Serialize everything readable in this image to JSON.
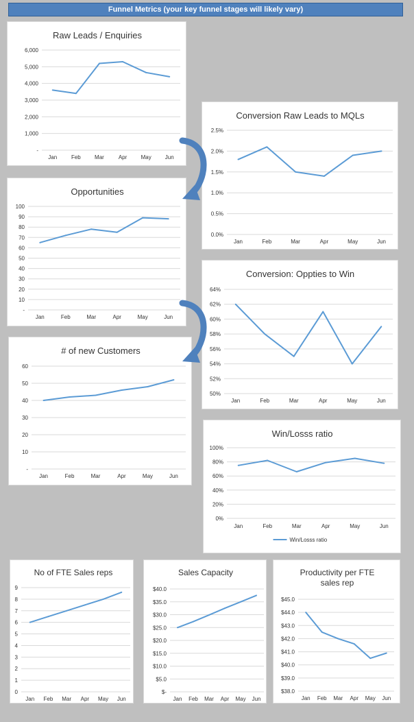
{
  "banner": {
    "title": "Funnel Metrics (your key funnel stages will likely vary)"
  },
  "colors": {
    "line": "#5b9bd5",
    "grid": "#d9d9d9",
    "banner": "#4f81bd",
    "arrow": "#4f81bd"
  },
  "chart_data": [
    {
      "id": "raw-leads",
      "type": "line",
      "title": [
        "Raw Leads / Enquiries"
      ],
      "categories": [
        "Jan",
        "Feb",
        "Mar",
        "Apr",
        "May",
        "Jun"
      ],
      "series": [
        {
          "values": [
            3600,
            3400,
            5200,
            5300,
            4650,
            4400
          ]
        }
      ],
      "ylim": [
        0,
        6000
      ],
      "yticks": [
        0,
        1000,
        2000,
        3000,
        4000,
        5000,
        6000
      ],
      "ytick_labels": [
        "-",
        "1,000",
        "2,000",
        "3,000",
        "4,000",
        "5,000",
        "6,000"
      ],
      "grid": true,
      "legend": null
    },
    {
      "id": "conv-leads-mql",
      "type": "line",
      "title": [
        "Conversion Raw Leads to MQLs"
      ],
      "categories": [
        "Jan",
        "Feb",
        "Mar",
        "Apr",
        "May",
        "Jun"
      ],
      "series": [
        {
          "values": [
            1.8,
            2.1,
            1.5,
            1.4,
            1.9,
            2.0
          ]
        }
      ],
      "ylim": [
        0,
        2.5
      ],
      "yticks": [
        0,
        0.5,
        1.0,
        1.5,
        2.0,
        2.5
      ],
      "ytick_labels": [
        "0.0%",
        "0.5%",
        "1.0%",
        "1.5%",
        "2.0%",
        "2.5%"
      ],
      "grid": true,
      "legend": null
    },
    {
      "id": "opportunities",
      "type": "line",
      "title": [
        "Opportunities"
      ],
      "categories": [
        "Jan",
        "Feb",
        "Mar",
        "Apr",
        "May",
        "Jun"
      ],
      "series": [
        {
          "values": [
            65,
            72,
            78,
            75,
            89,
            88
          ]
        }
      ],
      "ylim": [
        0,
        100
      ],
      "yticks": [
        0,
        10,
        20,
        30,
        40,
        50,
        60,
        70,
        80,
        90,
        100
      ],
      "ytick_labels": [
        "-",
        "10",
        "20",
        "30",
        "40",
        "50",
        "60",
        "70",
        "80",
        "90",
        "100"
      ],
      "grid": true,
      "legend": null
    },
    {
      "id": "conv-oppties-win",
      "type": "line",
      "title": [
        "Conversion: Oppties to Win"
      ],
      "categories": [
        "Jan",
        "Feb",
        "Mar",
        "Apr",
        "May",
        "Jun"
      ],
      "series": [
        {
          "values": [
            62,
            58,
            55,
            61,
            54,
            59
          ]
        }
      ],
      "ylim": [
        50,
        64
      ],
      "yticks": [
        50,
        52,
        54,
        56,
        58,
        60,
        62,
        64
      ],
      "ytick_labels": [
        "50%",
        "52%",
        "54%",
        "56%",
        "58%",
        "60%",
        "62%",
        "64%"
      ],
      "grid": true,
      "legend": null
    },
    {
      "id": "new-customers",
      "type": "line",
      "title": [
        "# of new Customers"
      ],
      "categories": [
        "Jan",
        "Feb",
        "Mar",
        "Apr",
        "May",
        "Jun"
      ],
      "series": [
        {
          "values": [
            40,
            42,
            43,
            46,
            48,
            52
          ]
        }
      ],
      "ylim": [
        0,
        60
      ],
      "yticks": [
        0,
        10,
        20,
        30,
        40,
        50,
        60
      ],
      "ytick_labels": [
        "-",
        "10",
        "20",
        "30",
        "40",
        "50",
        "60"
      ],
      "grid": true,
      "legend": null
    },
    {
      "id": "win-loss",
      "type": "line",
      "title": [
        "Win/Losss ratio"
      ],
      "categories": [
        "Jan",
        "Feb",
        "Mar",
        "Apr",
        "May",
        "Jun"
      ],
      "series": [
        {
          "name": "Win/Losss ratio",
          "values": [
            75,
            82,
            66,
            79,
            85,
            78
          ]
        }
      ],
      "ylim": [
        0,
        100
      ],
      "yticks": [
        0,
        20,
        40,
        60,
        80,
        100
      ],
      "ytick_labels": [
        "0%",
        "20%",
        "40%",
        "60%",
        "80%",
        "100%"
      ],
      "grid": true,
      "legend": "bottom"
    },
    {
      "id": "fte-reps",
      "type": "line",
      "title": [
        "No of FTE Sales reps"
      ],
      "categories": [
        "Jan",
        "Feb",
        "Mar",
        "Apr",
        "May",
        "Jun"
      ],
      "series": [
        {
          "values": [
            6.0,
            6.5,
            7.0,
            7.5,
            8.0,
            8.6
          ]
        }
      ],
      "ylim": [
        0,
        9
      ],
      "yticks": [
        0,
        1,
        2,
        3,
        4,
        5,
        6,
        7,
        8,
        9
      ],
      "ytick_labels": [
        "0",
        "1",
        "2",
        "3",
        "4",
        "5",
        "6",
        "7",
        "8",
        "9"
      ],
      "grid": true,
      "legend": null
    },
    {
      "id": "sales-capacity",
      "type": "line",
      "title": [
        "Sales Capacity"
      ],
      "categories": [
        "Jan",
        "Feb",
        "Mar",
        "Apr",
        "May",
        "Jun"
      ],
      "series": [
        {
          "values": [
            25.0,
            27.3,
            29.9,
            32.5,
            35.0,
            37.5
          ]
        }
      ],
      "ylim": [
        0,
        40
      ],
      "yticks": [
        0,
        5,
        10,
        15,
        20,
        25,
        30,
        35,
        40
      ],
      "ytick_labels": [
        "$-",
        "$5.0",
        "$10.0",
        "$15.0",
        "$20.0",
        "$25.0",
        "$30.0",
        "$35.0",
        "$40.0"
      ],
      "grid": true,
      "legend": null
    },
    {
      "id": "productivity",
      "type": "line",
      "title": [
        "Productivity per FTE",
        "sales rep"
      ],
      "categories": [
        "Jan",
        "Feb",
        "Mar",
        "Apr",
        "May",
        "Jun"
      ],
      "series": [
        {
          "values": [
            44.0,
            42.5,
            42.0,
            41.6,
            40.5,
            40.9
          ]
        }
      ],
      "ylim": [
        38,
        45
      ],
      "yticks": [
        38,
        39,
        40,
        41,
        42,
        43,
        44,
        45
      ],
      "ytick_labels": [
        "$38.0",
        "$39.0",
        "$40.0",
        "$41.0",
        "$42.0",
        "$43.0",
        "$44.0",
        "$45.0"
      ],
      "grid": true,
      "legend": null
    }
  ]
}
